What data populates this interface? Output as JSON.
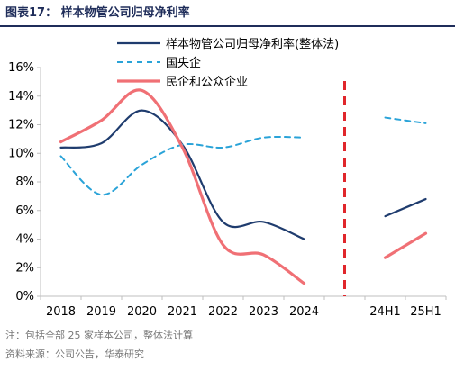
{
  "header": {
    "title": "图表17：  样本物管公司归母净利率"
  },
  "chart_data": {
    "type": "line",
    "categories": [
      "2018",
      "2019",
      "2020",
      "2021",
      "2022",
      "2023",
      "2024",
      "",
      "24H1",
      "25H1"
    ],
    "ylim": [
      0,
      16
    ],
    "yticks": [
      0,
      2,
      4,
      6,
      8,
      10,
      12,
      14,
      16
    ],
    "ytick_labels": [
      "0%",
      "2%",
      "4%",
      "6%",
      "8%",
      "10%",
      "12%",
      "14%",
      "16%"
    ],
    "xlabel": "",
    "ylabel": "",
    "legend_position": "top-center",
    "series": [
      {
        "name": "样本物管公司归母净利率(整体法)",
        "color": "#1f3c6e",
        "style": "solid",
        "values": [
          10.4,
          10.7,
          13.0,
          10.6,
          5.2,
          5.2,
          4.0,
          null,
          5.6,
          6.8
        ]
      },
      {
        "name": "国央企",
        "color": "#2aa3d8",
        "style": "dashed",
        "values": [
          9.8,
          7.1,
          9.2,
          10.6,
          10.4,
          11.1,
          11.1,
          null,
          12.5,
          12.1
        ]
      },
      {
        "name": "民企和公众企业",
        "color": "#f07075",
        "style": "solid",
        "values": [
          10.8,
          12.3,
          14.4,
          10.4,
          3.6,
          2.9,
          0.9,
          null,
          2.7,
          4.4
        ]
      }
    ],
    "separator": {
      "color": "#e0262b",
      "style": "dashed",
      "between": [
        "2024",
        "24H1"
      ]
    }
  },
  "footnotes": {
    "note": "注：包括全部 25 家样本公司，整体法计算",
    "source": "资料来源：公司公告，华泰研究"
  }
}
